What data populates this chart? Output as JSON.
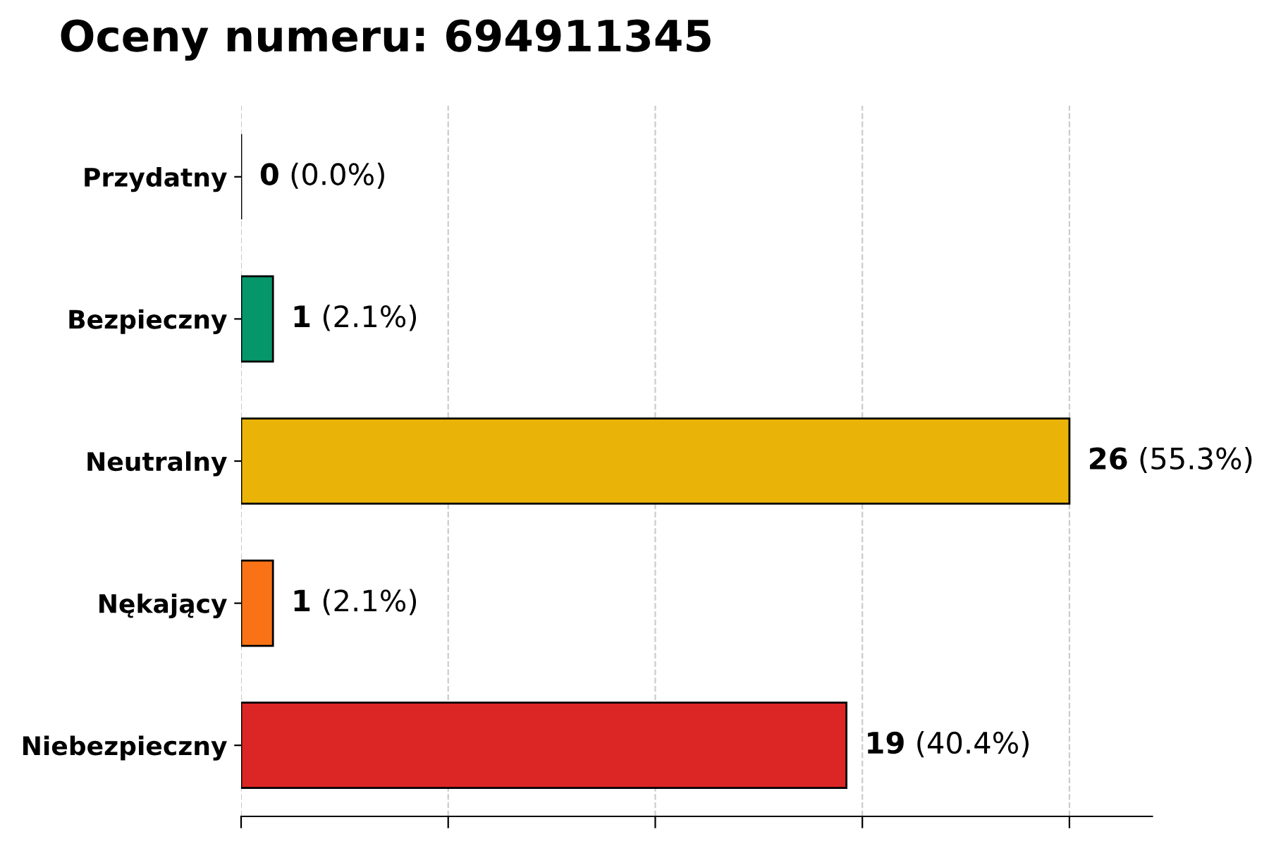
{
  "chart_data": {
    "type": "bar",
    "orientation": "horizontal",
    "title": "Oceny numeru: 694911345",
    "categories": [
      "Przydatny",
      "Bezpieczny",
      "Neutralny",
      "Nękający",
      "Niebezpieczny"
    ],
    "values": [
      0,
      1,
      26,
      1,
      19
    ],
    "colors": [
      "#000000",
      "#059669",
      "#eab308",
      "#f97316",
      "#dc2626"
    ],
    "value_labels": [
      "0 (0.0%)",
      "1 (2.1%)",
      "26 (55.3%)",
      "1 (2.1%)",
      "19 (40.4%)"
    ],
    "xlim": [
      0,
      28.6
    ],
    "xticks": [
      {
        "value": 0,
        "label": null
      },
      {
        "value": 6.5,
        "label": null
      },
      {
        "value": 13,
        "label": null
      },
      {
        "value": 19.5,
        "label": null
      },
      {
        "value": 26,
        "label": null
      }
    ],
    "tick_labels": "y",
    "grid": "x",
    "legend": false
  }
}
